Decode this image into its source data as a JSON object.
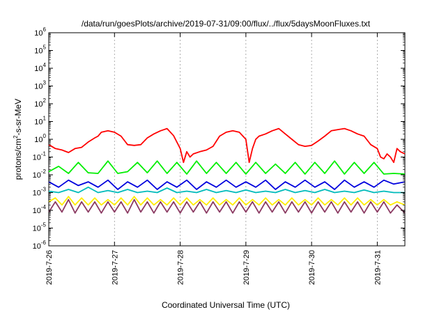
{
  "chart_data": {
    "type": "line",
    "title": "/data/run/goesPlots/archive/2019-07-31/09:00/flux/../flux/5daysMoonFluxes.txt",
    "xlabel": "Coordinated Universal Time (UTC)",
    "ylabel_parts": [
      "protons/cm",
      "2",
      "-s-sr-MeV"
    ],
    "y_scale": "log",
    "ylim_exp": [
      -6,
      6
    ],
    "y_ticks": [
      {
        "base": "10",
        "exp": "-6"
      },
      {
        "base": "10",
        "exp": "-5"
      },
      {
        "base": "10",
        "exp": "-4"
      },
      {
        "base": "10",
        "exp": "-3"
      },
      {
        "base": "10",
        "exp": "-2"
      },
      {
        "base": "10",
        "exp": "-1"
      },
      {
        "base": "10",
        "exp": "0"
      },
      {
        "base": "10",
        "exp": "1"
      },
      {
        "base": "10",
        "exp": "2"
      },
      {
        "base": "10",
        "exp": "3"
      },
      {
        "base": "10",
        "exp": "4"
      },
      {
        "base": "10",
        "exp": "5"
      },
      {
        "base": "10",
        "exp": "6"
      }
    ],
    "x_ticks": [
      "2019-7-26",
      "2019-7-27",
      "2019-7-28",
      "2019-7-29",
      "2019-7-30",
      "2019-7-31"
    ],
    "xlim_days": [
      0,
      5.42
    ],
    "grid": "vertical dashed at day boundaries",
    "series": [
      {
        "color": "#ff0000",
        "x": [
          0.0,
          0.1,
          0.2,
          0.3,
          0.4,
          0.5,
          0.6,
          0.7,
          0.75,
          0.8,
          0.9,
          1.0,
          1.1,
          1.2,
          1.3,
          1.4,
          1.5,
          1.6,
          1.7,
          1.8,
          1.9,
          2.0,
          2.05,
          2.1,
          2.15,
          2.2,
          2.3,
          2.4,
          2.5,
          2.6,
          2.7,
          2.8,
          2.9,
          3.0,
          3.05,
          3.1,
          3.15,
          3.2,
          3.3,
          3.4,
          3.5,
          3.6,
          3.7,
          3.8,
          3.9,
          4.0,
          4.1,
          4.2,
          4.3,
          4.4,
          4.5,
          4.6,
          4.7,
          4.8,
          4.9,
          5.0,
          5.05,
          5.1,
          5.15,
          5.2,
          5.25,
          5.3,
          5.35,
          5.42
        ],
        "values": [
          0.5,
          0.3,
          0.25,
          0.18,
          0.3,
          0.35,
          0.7,
          1.2,
          1.5,
          2.5,
          3,
          2.5,
          1.5,
          0.5,
          0.45,
          0.5,
          1.2,
          2,
          3,
          4,
          1.6,
          0.3,
          0.05,
          0.2,
          0.1,
          0.15,
          0.2,
          0.25,
          0.4,
          1.5,
          2.5,
          3,
          2.5,
          1,
          0.05,
          0.3,
          1,
          1.5,
          2,
          3,
          4,
          2,
          1,
          0.5,
          0.4,
          0.45,
          0.8,
          1.5,
          3,
          3.5,
          4,
          3,
          2,
          1.5,
          0.5,
          0.3,
          0.1,
          0.08,
          0.15,
          0.1,
          0.05,
          0.3,
          0.2,
          0.15
        ]
      },
      {
        "color": "#00ee00",
        "x": [
          0.0,
          0.15,
          0.3,
          0.45,
          0.6,
          0.75,
          0.9,
          1.05,
          1.2,
          1.35,
          1.5,
          1.65,
          1.8,
          1.95,
          2.1,
          2.25,
          2.4,
          2.55,
          2.7,
          2.85,
          3.0,
          3.15,
          3.3,
          3.45,
          3.6,
          3.75,
          3.9,
          4.05,
          4.2,
          4.35,
          4.5,
          4.65,
          4.8,
          4.95,
          5.1,
          5.25,
          5.42
        ],
        "values": [
          0.015,
          0.03,
          0.012,
          0.05,
          0.013,
          0.012,
          0.06,
          0.012,
          0.015,
          0.05,
          0.013,
          0.06,
          0.012,
          0.05,
          0.011,
          0.06,
          0.012,
          0.05,
          0.012,
          0.05,
          0.011,
          0.05,
          0.012,
          0.04,
          0.012,
          0.05,
          0.011,
          0.05,
          0.012,
          0.06,
          0.011,
          0.05,
          0.012,
          0.05,
          0.011,
          0.012,
          0.011
        ]
      },
      {
        "color": "#0000dd",
        "x": [
          0.0,
          0.15,
          0.3,
          0.45,
          0.6,
          0.75,
          0.9,
          1.05,
          1.2,
          1.35,
          1.5,
          1.65,
          1.8,
          1.95,
          2.1,
          2.25,
          2.4,
          2.55,
          2.7,
          2.85,
          3.0,
          3.15,
          3.3,
          3.45,
          3.6,
          3.75,
          3.9,
          4.05,
          4.2,
          4.35,
          4.5,
          4.65,
          4.8,
          4.95,
          5.1,
          5.25,
          5.42
        ],
        "values": [
          0.004,
          0.002,
          0.005,
          0.0025,
          0.004,
          0.002,
          0.005,
          0.0015,
          0.004,
          0.002,
          0.005,
          0.0015,
          0.004,
          0.002,
          0.005,
          0.0015,
          0.004,
          0.002,
          0.005,
          0.002,
          0.004,
          0.002,
          0.005,
          0.0015,
          0.004,
          0.002,
          0.005,
          0.002,
          0.004,
          0.0015,
          0.005,
          0.002,
          0.004,
          0.002,
          0.005,
          0.003,
          0.004
        ]
      },
      {
        "color": "#00bbbb",
        "x": [
          0.0,
          0.15,
          0.3,
          0.45,
          0.6,
          0.75,
          0.9,
          1.05,
          1.2,
          1.35,
          1.5,
          1.65,
          1.8,
          1.95,
          2.1,
          2.25,
          2.4,
          2.55,
          2.7,
          2.85,
          3.0,
          3.15,
          3.3,
          3.45,
          3.6,
          3.75,
          3.9,
          4.05,
          4.2,
          4.35,
          4.5,
          4.65,
          4.8,
          4.95,
          5.1,
          5.25,
          5.42
        ],
        "values": [
          0.0012,
          0.001,
          0.0015,
          0.001,
          0.002,
          0.001,
          0.0013,
          0.001,
          0.0015,
          0.001,
          0.0012,
          0.001,
          0.0018,
          0.001,
          0.0012,
          0.001,
          0.0015,
          0.001,
          0.0013,
          0.001,
          0.0014,
          0.001,
          0.0012,
          0.001,
          0.0015,
          0.001,
          0.0013,
          0.001,
          0.0015,
          0.001,
          0.0012,
          0.001,
          0.0014,
          0.001,
          0.0012,
          0.001,
          0.001
        ]
      },
      {
        "color": "#ffee00",
        "x": [
          0.0,
          0.1,
          0.2,
          0.3,
          0.4,
          0.5,
          0.6,
          0.7,
          0.8,
          0.9,
          1.0,
          1.1,
          1.2,
          1.3,
          1.4,
          1.5,
          1.6,
          1.7,
          1.8,
          1.9,
          2.0,
          2.1,
          2.2,
          2.3,
          2.4,
          2.5,
          2.6,
          2.7,
          2.8,
          2.9,
          3.0,
          3.1,
          3.2,
          3.3,
          3.4,
          3.5,
          3.6,
          3.7,
          3.8,
          3.9,
          4.0,
          4.1,
          4.2,
          4.3,
          4.4,
          4.5,
          4.6,
          4.7,
          4.8,
          4.9,
          5.0,
          5.1,
          5.2,
          5.3,
          5.42
        ],
        "values": [
          0.0003,
          0.0005,
          0.0002,
          0.0006,
          0.0002,
          0.0005,
          0.0002,
          0.0005,
          0.0002,
          0.0004,
          0.0002,
          0.0005,
          0.0002,
          0.0006,
          0.0002,
          0.0005,
          0.0002,
          0.0004,
          0.0002,
          0.0005,
          0.0002,
          0.0005,
          0.0002,
          0.0004,
          0.0002,
          0.0005,
          0.0002,
          0.0004,
          0.0002,
          0.0005,
          0.0002,
          0.0004,
          0.0002,
          0.0005,
          0.0002,
          0.0004,
          0.0002,
          0.0005,
          0.0002,
          0.0004,
          0.0002,
          0.0005,
          0.0002,
          0.0004,
          0.0002,
          0.0005,
          0.0002,
          0.0005,
          0.0002,
          0.0004,
          0.0002,
          0.0004,
          0.0002,
          0.0003,
          0.0002
        ]
      },
      {
        "color": "#8b3a62",
        "x": [
          0.0,
          0.1,
          0.2,
          0.3,
          0.4,
          0.5,
          0.6,
          0.7,
          0.8,
          0.9,
          1.0,
          1.1,
          1.2,
          1.3,
          1.4,
          1.5,
          1.6,
          1.7,
          1.8,
          1.9,
          2.0,
          2.1,
          2.2,
          2.3,
          2.4,
          2.5,
          2.6,
          2.7,
          2.8,
          2.9,
          3.0,
          3.1,
          3.2,
          3.3,
          3.4,
          3.5,
          3.6,
          3.7,
          3.8,
          3.9,
          4.0,
          4.1,
          4.2,
          4.3,
          4.4,
          4.5,
          4.6,
          4.7,
          4.8,
          4.9,
          5.0,
          5.1,
          5.2,
          5.3,
          5.42
        ],
        "values": [
          8e-05,
          0.0003,
          8e-05,
          0.0004,
          7e-05,
          0.0003,
          8e-05,
          0.0003,
          7e-05,
          0.0003,
          8e-05,
          0.0003,
          7e-05,
          0.0004,
          8e-05,
          0.0003,
          7e-05,
          0.0003,
          8e-05,
          0.0003,
          7e-05,
          0.0003,
          8e-05,
          0.0003,
          7e-05,
          0.0003,
          8e-05,
          0.0003,
          7e-05,
          0.0003,
          8e-05,
          0.0003,
          7e-05,
          0.0003,
          8e-05,
          0.0003,
          7e-05,
          0.0003,
          8e-05,
          0.0003,
          7e-05,
          0.0003,
          8e-05,
          0.0003,
          7e-05,
          0.0003,
          8e-05,
          0.0003,
          7e-05,
          0.0003,
          8e-05,
          0.0003,
          7e-05,
          0.0002,
          7e-05
        ]
      }
    ]
  }
}
